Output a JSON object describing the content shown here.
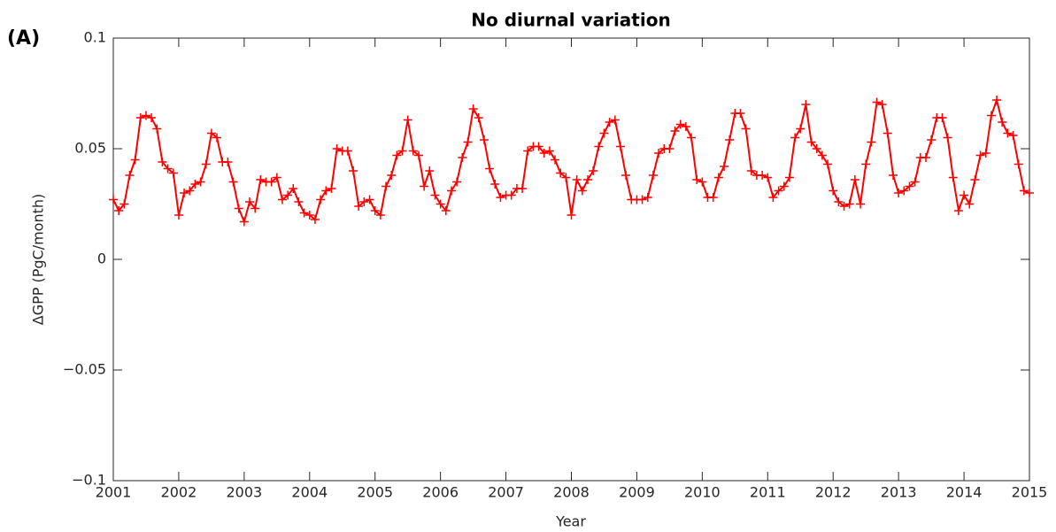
{
  "panel_label": "(A)",
  "chart_data": {
    "type": "line",
    "title": "No diurnal variation",
    "x_label": "Year",
    "y_label": "ΔGPP (PgC/month)",
    "xlim": [
      2001,
      2015
    ],
    "xticks": [
      2001,
      2002,
      2003,
      2004,
      2005,
      2006,
      2007,
      2008,
      2009,
      2010,
      2011,
      2012,
      2013,
      2014,
      2015
    ],
    "ylim": [
      -0.1,
      0.1
    ],
    "yticks": [
      {
        "value": -0.1,
        "label": "−0.1"
      },
      {
        "value": -0.05,
        "label": "−0.05"
      },
      0,
      0.05,
      0.1
    ],
    "grid": false,
    "marker": "+",
    "x": [
      2001,
      2001.083,
      2001.167,
      2001.25,
      2001.333,
      2001.417,
      2001.5,
      2001.583,
      2001.667,
      2001.75,
      2001.833,
      2001.917,
      2002,
      2002.083,
      2002.167,
      2002.25,
      2002.333,
      2002.417,
      2002.5,
      2002.583,
      2002.667,
      2002.75,
      2002.833,
      2002.917,
      2003,
      2003.083,
      2003.167,
      2003.25,
      2003.333,
      2003.417,
      2003.5,
      2003.583,
      2003.667,
      2003.75,
      2003.833,
      2003.917,
      2004,
      2004.083,
      2004.167,
      2004.25,
      2004.333,
      2004.417,
      2004.5,
      2004.583,
      2004.667,
      2004.75,
      2004.833,
      2004.917,
      2005,
      2005.083,
      2005.167,
      2005.25,
      2005.333,
      2005.417,
      2005.5,
      2005.583,
      2005.667,
      2005.75,
      2005.833,
      2005.917,
      2006,
      2006.083,
      2006.167,
      2006.25,
      2006.333,
      2006.417,
      2006.5,
      2006.583,
      2006.667,
      2006.75,
      2006.833,
      2006.917,
      2007,
      2007.083,
      2007.167,
      2007.25,
      2007.333,
      2007.417,
      2007.5,
      2007.583,
      2007.667,
      2007.75,
      2007.833,
      2007.917,
      2008,
      2008.083,
      2008.167,
      2008.25,
      2008.333,
      2008.417,
      2008.5,
      2008.583,
      2008.667,
      2008.75,
      2008.833,
      2008.917,
      2009,
      2009.083,
      2009.167,
      2009.25,
      2009.333,
      2009.417,
      2009.5,
      2009.583,
      2009.667,
      2009.75,
      2009.833,
      2009.917,
      2010,
      2010.083,
      2010.167,
      2010.25,
      2010.333,
      2010.417,
      2010.5,
      2010.583,
      2010.667,
      2010.75,
      2010.833,
      2010.917,
      2011,
      2011.083,
      2011.167,
      2011.25,
      2011.333,
      2011.417,
      2011.5,
      2011.583,
      2011.667,
      2011.75,
      2011.833,
      2011.917,
      2012,
      2012.083,
      2012.167,
      2012.25,
      2012.333,
      2012.417,
      2012.5,
      2012.583,
      2012.667,
      2012.75,
      2012.833,
      2012.917,
      2013,
      2013.083,
      2013.167,
      2013.25,
      2013.333,
      2013.417,
      2013.5,
      2013.583,
      2013.667,
      2013.75,
      2013.833,
      2013.917,
      2014,
      2014.083,
      2014.167,
      2014.25,
      2014.333,
      2014.417,
      2014.5,
      2014.583,
      2014.667,
      2014.75,
      2014.833,
      2014.917,
      2015
    ],
    "series": [
      {
        "color": "#ff0000",
        "values": [
          0.027,
          0.022,
          0.025,
          0.038,
          0.045,
          0.064,
          0.065,
          0.064,
          0.059,
          0.044,
          0.041,
          0.039,
          0.02,
          0.03,
          0.031,
          0.034,
          0.035,
          0.043,
          0.057,
          0.055,
          0.044,
          0.044,
          0.035,
          0.023,
          0.017,
          0.026,
          0.023,
          0.036,
          0.035,
          0.035,
          0.037,
          0.027,
          0.029,
          0.032,
          0.026,
          0.021,
          0.02,
          0.018,
          0.027,
          0.031,
          0.032,
          0.05,
          0.049,
          0.049,
          0.04,
          0.024,
          0.026,
          0.027,
          0.022,
          0.02,
          0.033,
          0.038,
          0.047,
          0.049,
          0.063,
          0.049,
          0.047,
          0.033,
          0.04,
          0.029,
          0.025,
          0.022,
          0.031,
          0.035,
          0.046,
          0.053,
          0.068,
          0.064,
          0.054,
          0.041,
          0.034,
          0.028,
          0.029,
          0.029,
          0.032,
          0.032,
          0.049,
          0.051,
          0.051,
          0.048,
          0.049,
          0.045,
          0.039,
          0.037,
          0.02,
          0.036,
          0.031,
          0.036,
          0.04,
          0.051,
          0.057,
          0.062,
          0.063,
          0.051,
          0.038,
          0.027,
          0.027,
          0.027,
          0.028,
          0.038,
          0.048,
          0.05,
          0.05,
          0.058,
          0.061,
          0.06,
          0.055,
          0.036,
          0.035,
          0.028,
          0.028,
          0.037,
          0.042,
          0.054,
          0.066,
          0.066,
          0.059,
          0.04,
          0.038,
          0.038,
          0.037,
          0.028,
          0.031,
          0.033,
          0.037,
          0.055,
          0.059,
          0.07,
          0.053,
          0.05,
          0.047,
          0.043,
          0.031,
          0.026,
          0.024,
          0.025,
          0.036,
          0.025,
          0.043,
          0.053,
          0.071,
          0.07,
          0.057,
          0.038,
          0.03,
          0.031,
          0.033,
          0.035,
          0.046,
          0.046,
          0.054,
          0.064,
          0.064,
          0.055,
          0.037,
          0.022,
          0.029,
          0.025,
          0.036,
          0.047,
          0.048,
          0.065,
          0.072,
          0.062,
          0.057,
          0.056,
          0.043,
          0.031,
          0.03
        ]
      }
    ]
  }
}
